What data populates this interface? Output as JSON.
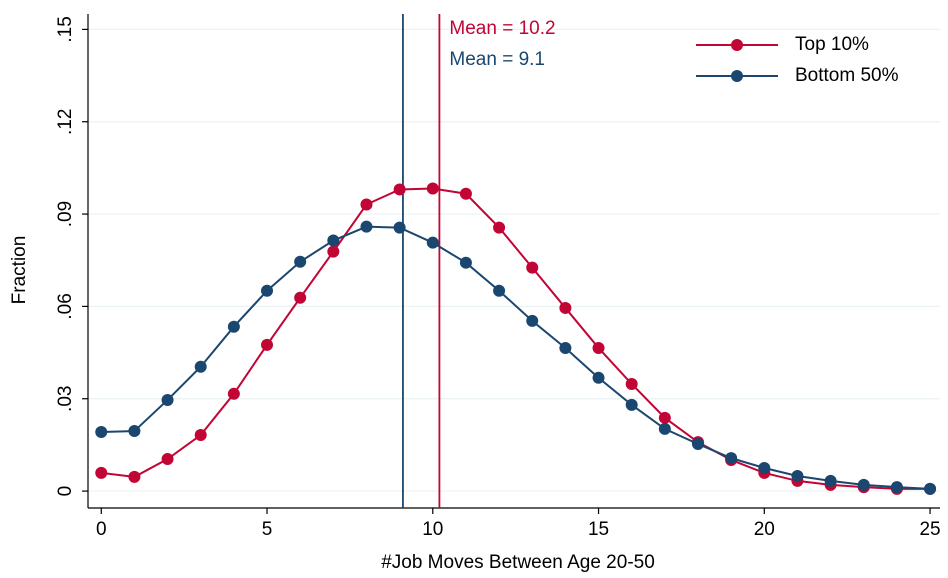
{
  "chart_data": {
    "type": "line",
    "x_label": "#Job Moves Between Age 20-50",
    "y_label": "Fraction",
    "x": [
      0,
      1,
      2,
      3,
      4,
      5,
      6,
      7,
      8,
      9,
      10,
      11,
      12,
      13,
      14,
      15,
      16,
      17,
      18,
      19,
      20,
      21,
      22,
      23,
      24,
      25
    ],
    "series": [
      {
        "name": "Top 10%",
        "color": "#c10534",
        "values": [
          0.0059,
          0.0046,
          0.0104,
          0.0182,
          0.0316,
          0.0475,
          0.0628,
          0.0778,
          0.0931,
          0.098,
          0.0983,
          0.0966,
          0.0856,
          0.0726,
          0.0595,
          0.0465,
          0.0348,
          0.0238,
          0.0159,
          0.0101,
          0.0059,
          0.0033,
          0.002,
          0.0013,
          0.0007,
          0.0007
        ]
      },
      {
        "name": "Bottom 50%",
        "color": "#1a476f",
        "values": [
          0.0192,
          0.0195,
          0.0296,
          0.0404,
          0.0534,
          0.0651,
          0.0745,
          0.0814,
          0.0859,
          0.0856,
          0.0807,
          0.0742,
          0.0651,
          0.0553,
          0.0465,
          0.0368,
          0.028,
          0.0202,
          0.0153,
          0.0107,
          0.0075,
          0.0049,
          0.0033,
          0.002,
          0.0013,
          0.0007
        ]
      }
    ],
    "vlines": [
      {
        "value": 10.2,
        "label": "Mean = 10.2",
        "color": "#c10534"
      },
      {
        "value": 9.1,
        "label": "Mean = 9.1",
        "color": "#1a476f"
      }
    ],
    "xlim": [
      -0.4,
      25.3
    ],
    "ylim": [
      -0.0055,
      0.155
    ],
    "xticks": [
      0,
      5,
      10,
      15,
      20,
      25
    ],
    "yticks": [
      0,
      {
        "value": 0.03,
        "label": ".03"
      },
      {
        "value": 0.06,
        "label": ".06"
      },
      {
        "value": 0.09,
        "label": ".09"
      },
      {
        "value": 0.12,
        "label": ".12"
      },
      {
        "value": 0.15,
        "label": ".15"
      }
    ],
    "grid": true,
    "legend": "top-right"
  }
}
